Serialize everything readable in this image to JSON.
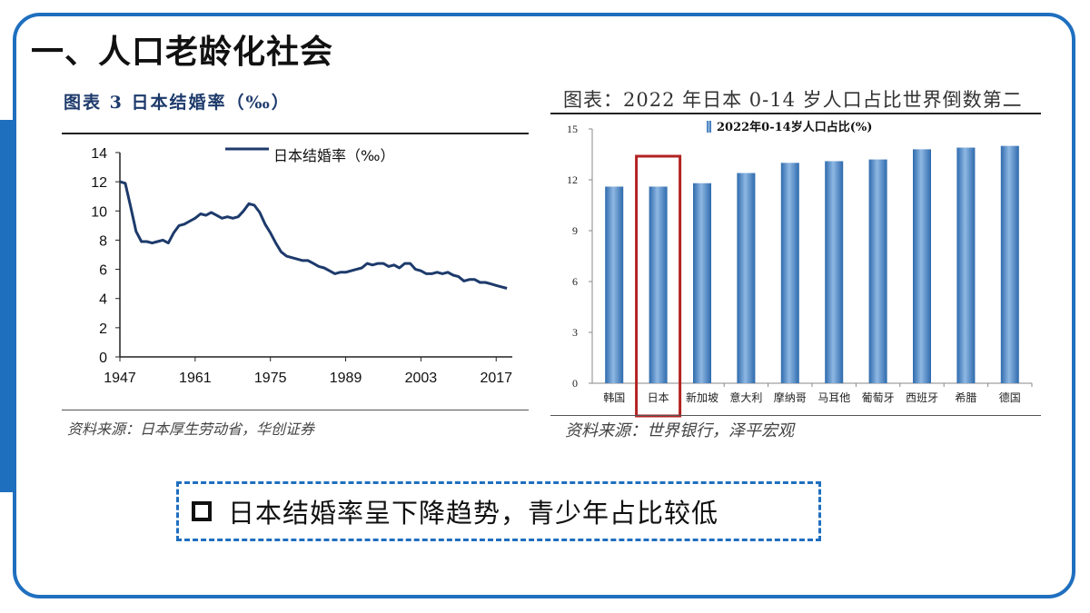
{
  "page": {
    "title": "一、人口老龄化社会",
    "callout": "日本结婚率呈下降趋势，青少年占比较低",
    "accent_color": "#1f6fbf"
  },
  "left_chart": {
    "figure_title": "图表 3   日本结婚率（‰）",
    "source": "资料来源：日本厚生劳动省，华创证券"
  },
  "right_chart": {
    "figure_title": "图表：2022 年日本 0-14 岁人口占比世界倒数第二",
    "source": "资料来源：世界银行，泽平宏观",
    "highlight_category": "日本",
    "highlight_color": "#b22222"
  },
  "chart_data": [
    {
      "type": "line",
      "title": "",
      "xlabel": "",
      "ylabel": "",
      "xlim": [
        1947,
        2020
      ],
      "ylim": [
        0,
        14
      ],
      "x_ticks": [
        "1947",
        "1961",
        "1975",
        "1989",
        "2003",
        "2017"
      ],
      "y_ticks": [
        "0",
        "2",
        "4",
        "6",
        "8",
        "10",
        "12",
        "14"
      ],
      "legend": "top-center",
      "grid": false,
      "series": [
        {
          "name": "日本结婚率（‰）",
          "color": "#1d3a6b",
          "x": [
            1947,
            1948,
            1949,
            1950,
            1951,
            1952,
            1953,
            1954,
            1955,
            1956,
            1957,
            1958,
            1959,
            1960,
            1961,
            1962,
            1963,
            1964,
            1965,
            1966,
            1967,
            1968,
            1969,
            1970,
            1971,
            1972,
            1973,
            1974,
            1975,
            1976,
            1977,
            1978,
            1979,
            1980,
            1981,
            1982,
            1983,
            1984,
            1985,
            1986,
            1987,
            1988,
            1989,
            1990,
            1991,
            1992,
            1993,
            1994,
            1995,
            1996,
            1997,
            1998,
            1999,
            2000,
            2001,
            2002,
            2003,
            2004,
            2005,
            2006,
            2007,
            2008,
            2009,
            2010,
            2011,
            2012,
            2013,
            2014,
            2015,
            2016,
            2017,
            2018,
            2019
          ],
          "y": [
            12.0,
            11.9,
            10.3,
            8.6,
            7.9,
            7.9,
            7.8,
            7.9,
            8.0,
            7.8,
            8.5,
            9.0,
            9.1,
            9.3,
            9.5,
            9.8,
            9.7,
            9.9,
            9.7,
            9.5,
            9.6,
            9.5,
            9.6,
            10.0,
            10.5,
            10.4,
            9.9,
            9.1,
            8.5,
            7.8,
            7.2,
            6.9,
            6.8,
            6.7,
            6.6,
            6.6,
            6.4,
            6.2,
            6.1,
            5.9,
            5.7,
            5.8,
            5.8,
            5.9,
            6.0,
            6.1,
            6.4,
            6.3,
            6.4,
            6.4,
            6.2,
            6.3,
            6.1,
            6.4,
            6.4,
            6.0,
            5.9,
            5.7,
            5.7,
            5.8,
            5.7,
            5.8,
            5.6,
            5.5,
            5.2,
            5.3,
            5.3,
            5.1,
            5.1,
            5.0,
            4.9,
            4.8,
            4.7
          ]
        }
      ]
    },
    {
      "type": "bar",
      "title": "",
      "xlabel": "",
      "ylabel": "",
      "ylim": [
        0,
        15
      ],
      "y_ticks": [
        "0",
        "3",
        "6",
        "9",
        "12",
        "15"
      ],
      "legend": "top-left",
      "grid": false,
      "categories": [
        "韩国",
        "日本",
        "新加坡",
        "意大利",
        "摩纳哥",
        "马耳他",
        "葡萄牙",
        "西班牙",
        "希腊",
        "德国"
      ],
      "series": [
        {
          "name": "2022年0-14岁人口占比(%)",
          "color": "#4a86c5",
          "values": [
            11.6,
            11.6,
            11.8,
            12.4,
            13.0,
            13.1,
            13.2,
            13.8,
            13.9,
            14.0
          ]
        }
      ]
    }
  ]
}
